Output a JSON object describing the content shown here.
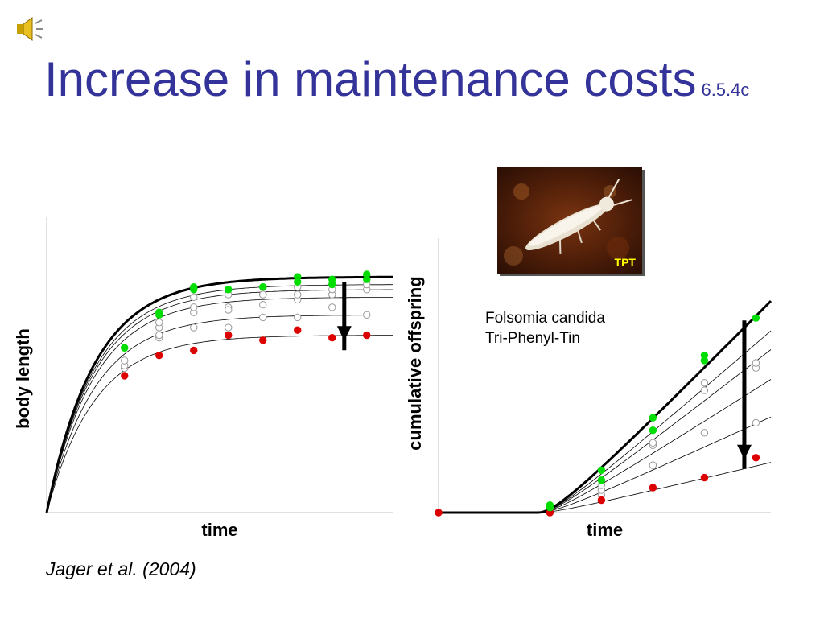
{
  "slide": {
    "title": "Increase in maintenance costs",
    "code": "6.5.4c",
    "citation": "Jager et al. (2004)",
    "species": [
      "Folsomia candida",
      "Tri-Phenyl-Tin"
    ],
    "photo_tag": "TPT",
    "sound_icon": "speaker-icon"
  },
  "colors": {
    "title": "#333399",
    "control": "#00dd00",
    "high": "#dd0000",
    "intermediate": "#ffffff"
  },
  "chart_data": [
    {
      "type": "scatter",
      "title": "",
      "xlabel": "time",
      "ylabel": "body length",
      "xlim": [
        0,
        100
      ],
      "ylim": [
        0,
        100
      ],
      "annotations": [
        "downward arrow: control curve to highest concentration curve"
      ],
      "series": [
        {
          "role": "control",
          "color": "#00dd00",
          "x": [
            22.5,
            32.5,
            32.5,
            42.5,
            42.5,
            52.5,
            52.5,
            62.5,
            62.5,
            72.5,
            72.5,
            82.5,
            82.5,
            92.5,
            92.5
          ],
          "y": [
            65,
            78,
            79,
            88,
            89,
            88,
            88,
            89,
            89,
            93,
            91,
            92,
            90,
            94,
            92
          ]
        },
        {
          "role": "conc-1",
          "color": "#ffffff",
          "x": [
            22.5,
            32.5,
            42.5,
            52.5,
            62.5,
            72.5,
            82.5,
            92.5
          ],
          "y": [
            60,
            75,
            85,
            86,
            86,
            89,
            88,
            90
          ]
        },
        {
          "role": "conc-2",
          "color": "#ffffff",
          "x": [
            22.5,
            32.5,
            42.5,
            52.5,
            62.5,
            72.5,
            82.5,
            92.5
          ],
          "y": [
            58,
            73,
            81,
            80,
            86,
            86,
            86,
            88
          ]
        },
        {
          "role": "conc-3",
          "color": "#ffffff",
          "x": [
            22.5,
            32.5,
            42.5,
            52.5,
            62.5,
            72.5,
            82.5
          ],
          "y": [
            57,
            70,
            79,
            81,
            82,
            84,
            81
          ]
        },
        {
          "role": "conc-4",
          "color": "#ffffff",
          "x": [
            32.5,
            42.5,
            52.5,
            62.5,
            72.5,
            92.5
          ],
          "y": [
            69,
            73,
            73,
            77,
            77,
            78
          ]
        },
        {
          "role": "high",
          "color": "#dd0000",
          "x": [
            22.5,
            32.5,
            42.5,
            52.5,
            62.5,
            72.5,
            82.5,
            92.5
          ],
          "y": [
            54,
            62,
            64,
            70,
            68,
            72,
            69,
            70
          ]
        }
      ],
      "curves": {
        "control": {
          "ymax": 93,
          "rate": 0.072
        },
        "others": [
          {
            "ymax": 90,
            "rate": 0.072
          },
          {
            "ymax": 88,
            "rate": 0.072
          },
          {
            "ymax": 85,
            "rate": 0.072
          },
          {
            "ymax": 78,
            "rate": 0.072
          }
        ],
        "high": {
          "ymax": 70,
          "rate": 0.072
        }
      }
    },
    {
      "type": "scatter",
      "title": "",
      "xlabel": "time",
      "ylabel": "cumulative offspring",
      "xlim": [
        0,
        100
      ],
      "ylim": [
        0,
        100
      ],
      "annotations": [
        "downward arrow: control curve to highest concentration curve"
      ],
      "series": [
        {
          "role": "control",
          "color": "#00dd00",
          "x": [
            33.5,
            33.5,
            49,
            49,
            64.5,
            64.5,
            80,
            80,
            95.5
          ],
          "y": [
            2,
            3,
            13,
            17,
            33,
            38,
            61,
            63,
            78
          ]
        },
        {
          "role": "conc-1",
          "color": "#ffffff",
          "x": [
            49,
            64.5,
            80,
            95.5
          ],
          "y": [
            11,
            28,
            52,
            60
          ]
        },
        {
          "role": "conc-2",
          "color": "#ffffff",
          "x": [
            49,
            64.5,
            80,
            95.5
          ],
          "y": [
            9,
            27,
            49,
            58
          ]
        },
        {
          "role": "conc-3",
          "color": "#ffffff",
          "x": [
            49,
            64.5,
            95.5
          ],
          "y": [
            7,
            19,
            36
          ]
        },
        {
          "role": "conc-4",
          "color": "#ffffff",
          "x": [
            80
          ],
          "y": [
            32
          ]
        },
        {
          "role": "high",
          "color": "#dd0000",
          "x": [
            0,
            33.5,
            49,
            64.5,
            80,
            95.5
          ],
          "y": [
            0,
            0,
            5,
            10,
            14,
            22
          ]
        }
      ],
      "curves": {
        "control": {
          "slope": 1.35
        },
        "others": [
          {
            "slope": 1.16
          },
          {
            "slope": 1.04
          },
          {
            "slope": 0.85
          },
          {
            "slope": 0.61
          }
        ],
        "high": {
          "slope": 0.32
        },
        "onset": 30
      }
    }
  ]
}
